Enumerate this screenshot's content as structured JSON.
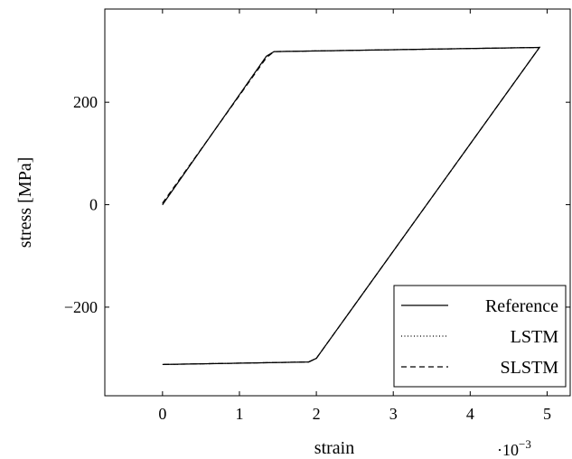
{
  "chart_data": {
    "type": "line",
    "xlabel": "strain",
    "ylabel": "stress [MPa]",
    "x_multiplier": "·10",
    "x_multiplier_exp": "−3",
    "xlim": [
      -0.75,
      5.3
    ],
    "ylim": [
      -373,
      382
    ],
    "x_ticks": [
      0,
      1,
      2,
      3,
      4,
      5
    ],
    "x_tick_labels": [
      "0",
      "1",
      "2",
      "3",
      "4",
      "5"
    ],
    "y_ticks": [
      -200,
      0,
      200
    ],
    "y_tick_labels": [
      "−200",
      "0",
      "200"
    ],
    "grid": false,
    "legend_position": "bottom-right",
    "series": [
      {
        "name": "Reference",
        "style": "solid",
        "points": [
          [
            0,
            0
          ],
          [
            1.35,
            290
          ],
          [
            1.45,
            299
          ],
          [
            4.9,
            307
          ],
          [
            2.0,
            -300
          ],
          [
            1.9,
            -307
          ],
          [
            0,
            -312
          ]
        ]
      },
      {
        "name": "LSTM",
        "style": "dotted",
        "points": [
          [
            0,
            0
          ],
          [
            1.35,
            290
          ],
          [
            1.45,
            299
          ],
          [
            4.9,
            307
          ],
          [
            2.0,
            -300
          ],
          [
            1.9,
            -307
          ],
          [
            0,
            -312
          ]
        ]
      },
      {
        "name": "SLSTM",
        "style": "dashed",
        "points": [
          [
            0,
            3
          ],
          [
            1.35,
            287
          ],
          [
            1.45,
            299
          ],
          [
            4.9,
            307
          ],
          [
            2.0,
            -300
          ],
          [
            1.9,
            -307
          ],
          [
            0,
            -312
          ]
        ]
      }
    ]
  }
}
